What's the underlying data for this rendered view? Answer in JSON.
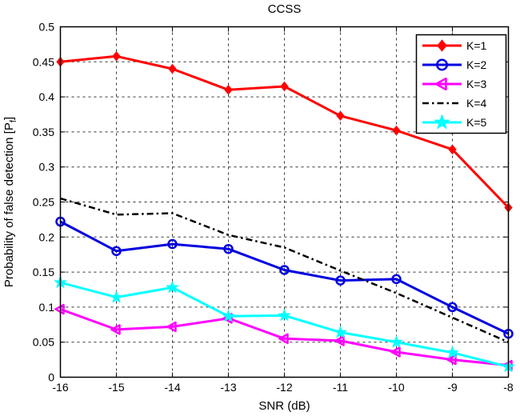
{
  "figure": {
    "title": "CCSS",
    "xlabel": "SNR (dB)",
    "ylabel_prefix": "Probability of false detection [P",
    "ylabel_subscript": "f",
    "ylabel_suffix": "]"
  },
  "chart_data": {
    "type": "line",
    "title": "CCSS",
    "xlabel": "SNR (dB)",
    "ylabel": "Probability of false detection [P_f]",
    "x": [
      -16,
      -15,
      -14,
      -13,
      -12,
      -11,
      -10,
      -9,
      -8
    ],
    "xlim": [
      -16,
      -8
    ],
    "ylim": [
      0,
      0.5
    ],
    "ytick_step": 0.05,
    "xticklabels": [
      "-16",
      "-15",
      "-14",
      "-13",
      "-12",
      "-11",
      "-10",
      "-9",
      "-8"
    ],
    "yticklabels": [
      "0",
      "0.05",
      "0.1",
      "0.15",
      "0.2",
      "0.25",
      "0.3",
      "0.35",
      "0.4",
      "0.45",
      "0.5"
    ],
    "grid": true,
    "grid_style": "dashed",
    "legend_position": "top-right",
    "background_color": "#ffffff",
    "axis_color": "#000000",
    "series": [
      {
        "name": "K=1",
        "color": "#ff0000",
        "line_style": "solid",
        "marker": "diamond",
        "values": [
          0.45,
          0.458,
          0.44,
          0.41,
          0.415,
          0.373,
          0.352,
          0.325,
          0.242
        ]
      },
      {
        "name": "K=2",
        "color": "#0000e0",
        "line_style": "solid",
        "marker": "circle",
        "values": [
          0.222,
          0.18,
          0.19,
          0.183,
          0.153,
          0.138,
          0.14,
          0.1,
          0.062
        ]
      },
      {
        "name": "K=3",
        "color": "#ff00ff",
        "line_style": "solid",
        "marker": "triangle-left",
        "values": [
          0.097,
          0.068,
          0.072,
          0.084,
          0.055,
          0.052,
          0.036,
          0.025,
          0.017
        ]
      },
      {
        "name": "K=4",
        "color": "#000000",
        "line_style": "dash-dot",
        "marker": "none",
        "values": [
          0.255,
          0.232,
          0.234,
          0.203,
          0.185,
          0.152,
          0.12,
          0.085,
          0.05
        ]
      },
      {
        "name": "K=5",
        "color": "#00ffff",
        "line_style": "solid",
        "marker": "star",
        "values": [
          0.135,
          0.114,
          0.128,
          0.087,
          0.088,
          0.064,
          0.05,
          0.035,
          0.015
        ]
      }
    ]
  }
}
